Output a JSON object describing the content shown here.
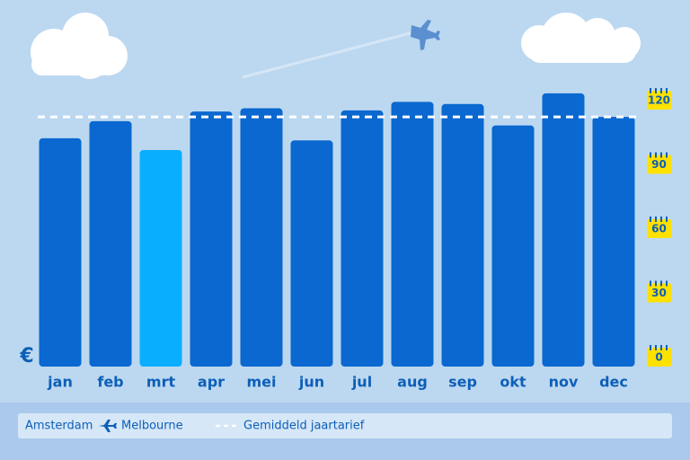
{
  "chart_data": {
    "type": "bar",
    "y_label": "€",
    "categories": [
      "jan",
      "feb",
      "mrt",
      "apr",
      "mei",
      "jun",
      "jul",
      "aug",
      "sep",
      "okt",
      "nov",
      "dec"
    ],
    "values": [
      102,
      110,
      96.5,
      114.5,
      116,
      101,
      115,
      119,
      118,
      108,
      123,
      112
    ],
    "colors": [
      "#0a68d0",
      "#0a68d0",
      "#0aaeff",
      "#0a68d0",
      "#0a68d0",
      "#0a68d0",
      "#0a68d0",
      "#0a68d0",
      "#0a68d0",
      "#0a68d0",
      "#0a68d0",
      "#0a68d0"
    ],
    "ylim": [
      0,
      120
    ],
    "yticks": [
      0,
      30,
      60,
      90,
      120
    ],
    "average": 112,
    "average_label": "Gemiddeld jaartarief",
    "origin": "Amsterdam",
    "destination": "Melbourne"
  }
}
